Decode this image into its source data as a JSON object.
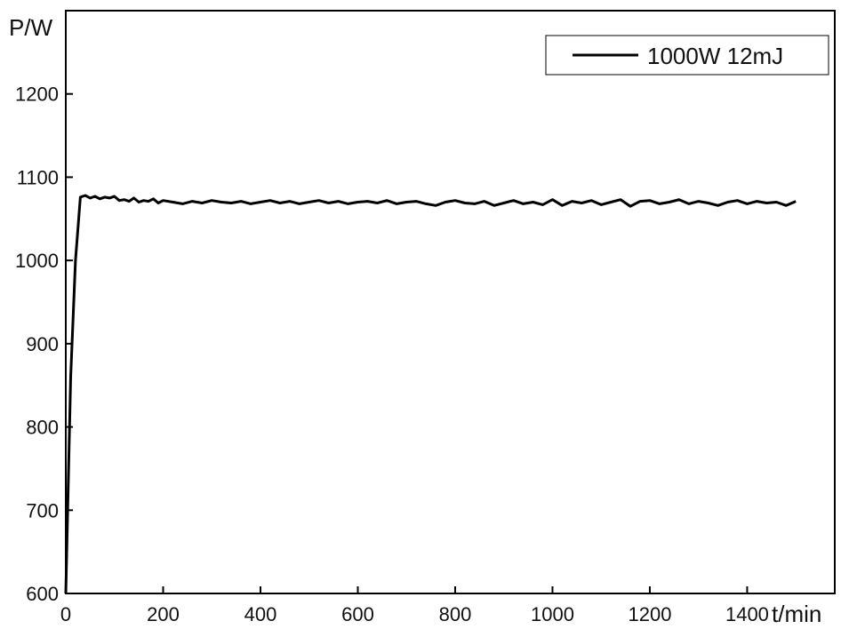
{
  "chart_data": {
    "type": "line",
    "title": "",
    "xlabel": "t/min",
    "ylabel": "P/W",
    "xlim": [
      0,
      1580
    ],
    "ylim": [
      600,
      1300
    ],
    "xticks": [
      0,
      200,
      400,
      600,
      800,
      1000,
      1200,
      1400
    ],
    "yticks": [
      600,
      700,
      800,
      900,
      1000,
      1100,
      1200
    ],
    "grid": false,
    "legend_position": "top-right",
    "series": [
      {
        "name": "1000W 12mJ",
        "color": "#000000",
        "x": [
          0,
          10,
          20,
          30,
          40,
          50,
          60,
          70,
          80,
          90,
          100,
          110,
          120,
          130,
          140,
          150,
          160,
          170,
          180,
          190,
          200,
          220,
          240,
          260,
          280,
          300,
          320,
          340,
          360,
          380,
          400,
          420,
          440,
          460,
          480,
          500,
          520,
          540,
          560,
          580,
          600,
          620,
          640,
          660,
          680,
          700,
          720,
          740,
          760,
          780,
          800,
          820,
          840,
          860,
          880,
          900,
          920,
          940,
          960,
          980,
          1000,
          1020,
          1040,
          1060,
          1080,
          1100,
          1120,
          1140,
          1160,
          1180,
          1200,
          1220,
          1240,
          1260,
          1280,
          1300,
          1320,
          1340,
          1360,
          1380,
          1400,
          1420,
          1440,
          1460,
          1480,
          1500
        ],
        "y": [
          600,
          860,
          1000,
          1076,
          1078,
          1075,
          1077,
          1074,
          1076,
          1075,
          1077,
          1072,
          1073,
          1071,
          1075,
          1070,
          1072,
          1071,
          1074,
          1069,
          1072,
          1070,
          1068,
          1071,
          1069,
          1072,
          1070,
          1069,
          1071,
          1068,
          1070,
          1072,
          1069,
          1071,
          1068,
          1070,
          1072,
          1069,
          1071,
          1068,
          1070,
          1071,
          1069,
          1072,
          1068,
          1070,
          1071,
          1068,
          1066,
          1070,
          1072,
          1069,
          1068,
          1071,
          1066,
          1069,
          1072,
          1068,
          1070,
          1067,
          1073,
          1066,
          1071,
          1069,
          1072,
          1067,
          1070,
          1073,
          1065,
          1071,
          1072,
          1068,
          1070,
          1073,
          1068,
          1071,
          1069,
          1066,
          1070,
          1072,
          1068,
          1071,
          1069,
          1070,
          1066,
          1071
        ]
      }
    ]
  }
}
